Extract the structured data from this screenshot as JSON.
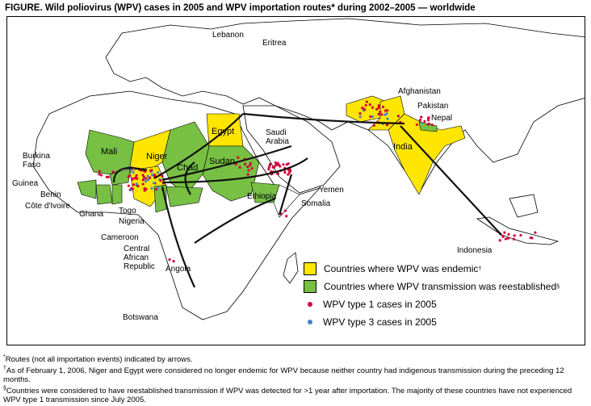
{
  "title": "FIGURE. Wild poliovirus (WPV) cases in 2005 and WPV importation routes* during 2002–2005 — worldwide",
  "colors": {
    "endemic": "#ffe600",
    "reestablished": "#77c043",
    "type1": "#d4003a",
    "type3": "#4a7fd1",
    "land": "#ffffff",
    "border": "#000000"
  },
  "countries": {
    "lebanon": "Lebanon",
    "eritrea": "Eritrea",
    "afghanistan": "Afghanistan",
    "pakistan": "Pakistan",
    "nepal": "Nepal",
    "india": "India",
    "egypt": "Egypt",
    "saudi_arabia": "Saudi\nArabia",
    "mali": "Mali",
    "niger": "Niger",
    "chad": "Chad",
    "sudan": "Sudan",
    "burkina_faso": "Burkina\nFaso",
    "guinea": "Guinea",
    "benin": "Benin",
    "cote_divoire": "Côte d'Ivoire",
    "ghana": "Ghana",
    "togo": "Togo",
    "nigeria": "Nigeria",
    "ethiopia": "Ethiopia",
    "yemen": "Yemen",
    "somalia": "Somalia",
    "cameroon": "Cameroon",
    "car": "Central\nAfrican\nRepublic",
    "angola": "Angola",
    "botswana": "Botswana",
    "indonesia": "Indonesia"
  },
  "legend": [
    {
      "label": "Countries where WPV was endemic",
      "mark": "†",
      "type": "endemic"
    },
    {
      "label": "Countries where WPV transmission was reestablished",
      "mark": "§",
      "type": "reestablished"
    },
    {
      "label": "WPV type 1 cases in 2005",
      "type": "type1"
    },
    {
      "label": "WPV type 3 cases in 2005",
      "type": "type3"
    }
  ],
  "footnotes": [
    {
      "mark": "*",
      "text": "Routes (not all importation events) indicated by arrows."
    },
    {
      "mark": "†",
      "text": "As of February 1, 2006, Niger and Egypt were considered no longer endemic for WPV because neither country had indigenous transmission during the preceding 12 months."
    },
    {
      "mark": "§",
      "text": "Countries were considered to have reestablished transmission if WPV was detected for >1 year after importation. The majority of these countries have not experienced WPV type 1 transmission since July 2005."
    }
  ]
}
